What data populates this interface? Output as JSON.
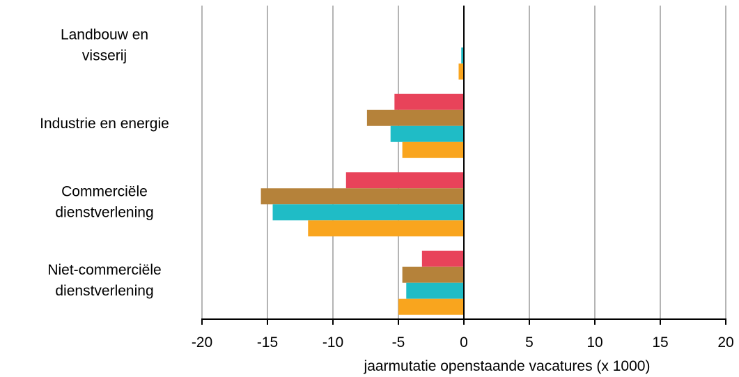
{
  "chart_data": {
    "type": "bar",
    "orientation": "horizontal",
    "title": "",
    "xlabel": "jaarmutatie openstaande vacatures (x 1000)",
    "ylabel": "",
    "xlim": [
      -20,
      20
    ],
    "xticks": [
      -20,
      -15,
      -10,
      -5,
      0,
      5,
      10,
      15,
      20
    ],
    "grid": "vertical",
    "legend": "none",
    "categories": [
      [
        "Landbouw en",
        "visserij"
      ],
      [
        "Industrie en energie"
      ],
      [
        "Commerciële",
        "dienstverlening"
      ],
      [
        "Niet-commerciële",
        "dienstverlening"
      ]
    ],
    "series": [
      {
        "color": "#e8435a",
        "values": [
          0,
          -5.3,
          -9.0,
          -3.2
        ]
      },
      {
        "color": "#b5823a",
        "values": [
          0,
          -7.4,
          -15.5,
          -4.7
        ]
      },
      {
        "color": "#1fbcc6",
        "values": [
          -0.2,
          -5.6,
          -14.6,
          -4.4
        ]
      },
      {
        "color": "#f9a51e",
        "values": [
          -0.4,
          -4.7,
          -11.9,
          -5.0
        ]
      }
    ]
  }
}
